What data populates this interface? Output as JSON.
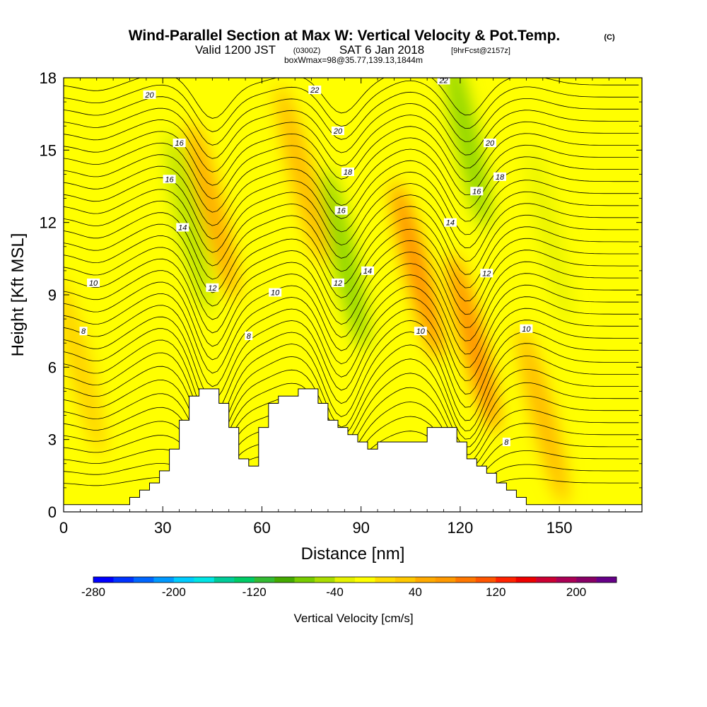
{
  "header": {
    "title": "Wind-Parallel Section at Max W: Vertical Velocity & Pot.Temp.",
    "title_mark": "(C)",
    "subtitle_valid": "Valid 1200 JST",
    "subtitle_utc": "(0300Z)",
    "subtitle_date": "SAT 6 Jan 2018",
    "subtitle_fcst": "[9hrFcst@2157z]",
    "subtitle_box": "boxWmax=98@35.77,139.13,1844m"
  },
  "chart_data": {
    "type": "heatmap",
    "xlabel": "Distance [nm]",
    "ylabel": "Height [Kft MSL]",
    "xlim": [
      0,
      175
    ],
    "ylim": [
      0,
      18
    ],
    "x_ticks": [
      0,
      30,
      60,
      90,
      120,
      150
    ],
    "y_ticks": [
      0,
      3,
      6,
      9,
      12,
      15,
      18
    ],
    "grid": false,
    "colorbar": {
      "title": "Vertical Velocity [cm/s]",
      "placement": "bottom",
      "min": -280,
      "max": 240,
      "step": 20,
      "tick_values": [
        -280,
        -200,
        -120,
        -40,
        40,
        120,
        200
      ],
      "colors": [
        "#0000ff",
        "#0033ff",
        "#0066ff",
        "#0099ff",
        "#00ccff",
        "#00e5e5",
        "#00cc99",
        "#00cc66",
        "#33bb33",
        "#44aa00",
        "#77cc00",
        "#aadd00",
        "#e6f200",
        "#ffff00",
        "#ffdd00",
        "#ffc800",
        "#ffaa00",
        "#ff9900",
        "#ff7700",
        "#ff5500",
        "#ff2200",
        "#ee0000",
        "#cc0033",
        "#aa0055",
        "#880066",
        "#660088"
      ]
    },
    "terrain_profile": {
      "x": [
        0,
        20,
        20,
        23,
        23,
        26,
        26,
        29,
        29,
        32,
        32,
        35,
        35,
        38,
        38,
        41,
        41,
        47,
        47,
        50,
        50,
        53,
        53,
        56,
        56,
        59,
        59,
        62,
        62,
        65,
        65,
        71,
        71,
        77,
        77,
        80,
        80,
        83,
        83,
        86,
        86,
        89,
        89,
        92,
        92,
        95,
        95,
        110,
        110,
        113,
        113,
        119,
        119,
        122,
        122,
        125,
        125,
        128,
        128,
        131,
        131,
        134,
        134,
        137,
        137,
        140,
        140,
        146,
        146,
        152,
        152,
        175
      ],
      "y": [
        0.3,
        0.3,
        0.6,
        0.6,
        0.9,
        0.9,
        1.2,
        1.2,
        1.7,
        1.7,
        2.6,
        2.6,
        3.8,
        3.8,
        4.8,
        4.8,
        5.1,
        5.1,
        4.5,
        4.5,
        3.5,
        3.5,
        2.2,
        2.2,
        1.9,
        1.9,
        3.5,
        3.5,
        4.5,
        4.5,
        4.8,
        4.8,
        5.1,
        5.1,
        4.5,
        4.5,
        3.8,
        3.8,
        3.5,
        3.5,
        3.2,
        3.2,
        2.9,
        2.9,
        2.6,
        2.6,
        2.9,
        2.9,
        3.5,
        3.5,
        3.5,
        3.5,
        2.9,
        2.9,
        2.2,
        2.2,
        1.9,
        1.9,
        1.6,
        1.6,
        1.2,
        1.2,
        0.9,
        0.9,
        0.6,
        0.6,
        0.3,
        0.3,
        0.3,
        0.3,
        0.3,
        0.3
      ]
    },
    "velocity_features": [
      {
        "type": "updraft",
        "x": 45,
        "y": 12.5,
        "value": 60
      },
      {
        "type": "downdraft",
        "x": 38,
        "y": 12.0,
        "value": -60
      },
      {
        "type": "updraft",
        "x": 72,
        "y": 14.0,
        "value": 40
      },
      {
        "type": "downdraft",
        "x": 85,
        "y": 10.5,
        "value": -80
      },
      {
        "type": "updraft",
        "x": 107,
        "y": 10.0,
        "value": 98
      },
      {
        "type": "downdraft",
        "x": 122,
        "y": 15.5,
        "value": -80
      },
      {
        "type": "updraft",
        "x": 124,
        "y": 7.0,
        "value": 80
      },
      {
        "type": "downdraft",
        "x": 147,
        "y": 11.5,
        "value": -40
      },
      {
        "type": "updraft",
        "x": 145,
        "y": 4.0,
        "value": 40
      },
      {
        "type": "updraft",
        "x": 5,
        "y": 6.0,
        "value": 30
      }
    ],
    "theta_contour_labels": [
      {
        "x": 26,
        "y": 17.3,
        "text": "20"
      },
      {
        "x": 76,
        "y": 17.5,
        "text": "22"
      },
      {
        "x": 115,
        "y": 17.9,
        "text": "22"
      },
      {
        "x": 83,
        "y": 15.8,
        "text": "20"
      },
      {
        "x": 129,
        "y": 15.3,
        "text": "20"
      },
      {
        "x": 35,
        "y": 15.3,
        "text": "16"
      },
      {
        "x": 86,
        "y": 14.1,
        "text": "18"
      },
      {
        "x": 132,
        "y": 13.9,
        "text": "18"
      },
      {
        "x": 32,
        "y": 13.8,
        "text": "16"
      },
      {
        "x": 125,
        "y": 13.3,
        "text": "16"
      },
      {
        "x": 84,
        "y": 12.5,
        "text": "16"
      },
      {
        "x": 36,
        "y": 11.8,
        "text": "14"
      },
      {
        "x": 117,
        "y": 12.0,
        "text": "14"
      },
      {
        "x": 92,
        "y": 10.0,
        "text": "14"
      },
      {
        "x": 128,
        "y": 9.9,
        "text": "12"
      },
      {
        "x": 9,
        "y": 9.5,
        "text": "10"
      },
      {
        "x": 45,
        "y": 9.3,
        "text": "12"
      },
      {
        "x": 83,
        "y": 9.5,
        "text": "12"
      },
      {
        "x": 64,
        "y": 9.1,
        "text": "10"
      },
      {
        "x": 108,
        "y": 7.5,
        "text": "10"
      },
      {
        "x": 140,
        "y": 7.6,
        "text": "10"
      },
      {
        "x": 6,
        "y": 7.5,
        "text": "8"
      },
      {
        "x": 56,
        "y": 7.3,
        "text": "8"
      },
      {
        "x": 134,
        "y": 2.9,
        "text": "8"
      }
    ]
  }
}
